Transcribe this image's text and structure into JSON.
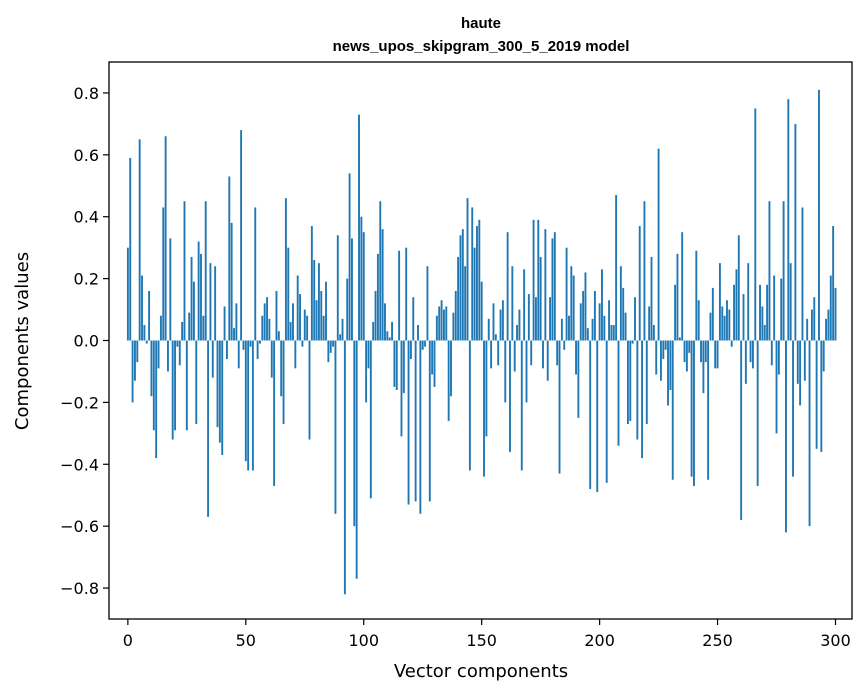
{
  "chart_data": {
    "type": "bar",
    "title": "haute",
    "subtitle": "news_upos_skipgram_300_5_2019 model",
    "xlabel": "Vector components",
    "ylabel": "Components values",
    "xlim": [
      -8,
      307
    ],
    "ylim": [
      -0.9,
      0.9
    ],
    "xticks": [
      0,
      50,
      100,
      150,
      200,
      250,
      300
    ],
    "yticks": [
      -0.8,
      -0.6,
      -0.4,
      -0.2,
      0.0,
      0.2,
      0.4,
      0.6,
      0.8
    ],
    "ytick_labels": [
      "−0.8",
      "−0.6",
      "−0.4",
      "−0.2",
      "0.0",
      "0.2",
      "0.4",
      "0.6",
      "0.8"
    ],
    "grid": false,
    "bar_color": "#1f77b4",
    "series": [
      {
        "values": [
          0.3,
          0.59,
          -0.2,
          -0.13,
          -0.07,
          0.65,
          0.21,
          0.05,
          -0.01,
          0.16,
          -0.18,
          -0.29,
          -0.38,
          -0.09,
          0.08,
          0.43,
          0.66,
          -0.1,
          0.33,
          -0.32,
          -0.29,
          -0.02,
          -0.08,
          0.06,
          0.45,
          -0.29,
          0.09,
          0.27,
          0.19,
          -0.27,
          0.32,
          0.28,
          0.08,
          0.45,
          -0.57,
          0.25,
          -0.12,
          0.24,
          -0.28,
          -0.33,
          -0.37,
          0.11,
          -0.06,
          0.53,
          0.38,
          0.04,
          0.12,
          -0.09,
          0.68,
          -0.03,
          -0.39,
          -0.42,
          -0.02,
          -0.42,
          0.43,
          -0.06,
          -0.01,
          0.08,
          0.12,
          0.14,
          0.07,
          -0.12,
          -0.47,
          0.16,
          0.03,
          -0.18,
          -0.27,
          0.46,
          0.3,
          0.06,
          0.12,
          -0.09,
          0.21,
          0.15,
          -0.02,
          0.1,
          0.08,
          -0.32,
          0.37,
          0.26,
          0.13,
          0.25,
          0.16,
          0.08,
          0.19,
          -0.07,
          -0.04,
          -0.02,
          -0.56,
          0.34,
          0.02,
          0.07,
          -0.82,
          0.2,
          0.54,
          0.33,
          -0.6,
          -0.77,
          0.73,
          0.4,
          0.35,
          -0.2,
          -0.09,
          -0.51,
          0.06,
          0.16,
          0.28,
          0.45,
          0.36,
          0.12,
          0.03,
          0.01,
          0.06,
          -0.15,
          -0.16,
          0.29,
          -0.31,
          -0.17,
          0.3,
          -0.53,
          -0.06,
          0.14,
          -0.52,
          0.05,
          -0.56,
          -0.03,
          -0.02,
          0.24,
          -0.52,
          -0.11,
          -0.15,
          0.08,
          0.11,
          0.13,
          0.1,
          0.11,
          -0.26,
          -0.18,
          0.09,
          0.16,
          0.27,
          0.34,
          0.36,
          0.24,
          0.46,
          -0.42,
          0.43,
          0.3,
          0.37,
          0.39,
          0.19,
          -0.44,
          -0.31,
          0.07,
          -0.09,
          0.12,
          0.02,
          -0.08,
          0.1,
          0.13,
          -0.2,
          0.35,
          -0.36,
          0.24,
          -0.1,
          0.05,
          0.1,
          -0.42,
          0.23,
          -0.2,
          0.15,
          -0.08,
          0.39,
          0.14,
          0.39,
          0.27,
          -0.09,
          0.36,
          -0.13,
          0.14,
          0.33,
          0.35,
          -0.08,
          -0.43,
          0.07,
          -0.03,
          0.3,
          0.08,
          0.24,
          0.21,
          -0.11,
          -0.25,
          0.12,
          0.16,
          0.22,
          0.04,
          -0.48,
          0.07,
          0.16,
          -0.49,
          0.12,
          0.23,
          0.08,
          -0.46,
          0.13,
          0.05,
          0.05,
          0.47,
          -0.34,
          0.24,
          0.17,
          0.09,
          -0.27,
          -0.26,
          -0.01,
          0.14,
          -0.32,
          0.37,
          -0.38,
          0.45,
          -0.27,
          0.11,
          0.27,
          0.05,
          -0.11,
          0.62,
          -0.13,
          -0.06,
          -0.03,
          -0.21,
          -0.16,
          -0.45,
          0.18,
          0.28,
          0.01,
          0.35,
          -0.07,
          -0.1,
          -0.04,
          -0.44,
          -0.47,
          0.29,
          0.13,
          -0.07,
          -0.17,
          -0.07,
          -0.45,
          0.09,
          0.17,
          -0.09,
          -0.09,
          0.25,
          0.11,
          0.08,
          0.13,
          0.1,
          -0.02,
          0.18,
          0.23,
          0.34,
          -0.58,
          0.15,
          -0.14,
          0.25,
          -0.07,
          -0.09,
          0.75,
          -0.47,
          0.18,
          0.11,
          0.05,
          0.18,
          0.45,
          -0.08,
          0.21,
          -0.3,
          -0.11,
          0.2,
          0.45,
          -0.62,
          0.78,
          0.25,
          -0.44,
          0.7,
          -0.14,
          -0.21,
          0.43,
          -0.13,
          0.07,
          -0.6,
          0.1,
          0.14,
          -0.35,
          0.81,
          -0.36,
          -0.1,
          0.07,
          0.1,
          0.21,
          0.37,
          0.17
        ]
      }
    ]
  }
}
